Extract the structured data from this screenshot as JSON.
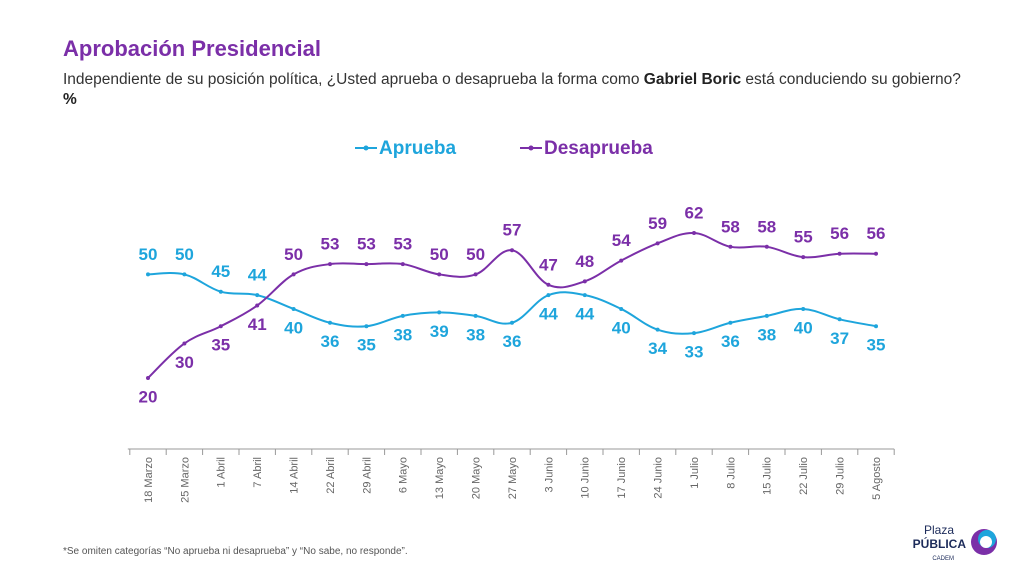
{
  "chart_data": {
    "type": "line",
    "title": "Aprobación Presidencial",
    "subtitle_parts": [
      {
        "text": "Independiente de su posición política, ¿Usted aprueba o desaprueba la forma como"
      },
      {
        "text": "Gabriel Boric",
        "bold": true
      },
      {
        "text": "está conduciendo su gobierno?"
      },
      {
        "text": "%",
        "bold": true
      }
    ],
    "categories": [
      "18 Marzo",
      "25 Marzo",
      "1 Abril",
      "7 Abril",
      "14 Abril",
      "22 Abril",
      "29 Abril",
      "6 Mayo",
      "13 Mayo",
      "20 Mayo",
      "27 Mayo",
      "3 Junio",
      "10 Junio",
      "17 Junio",
      "24 Junio",
      "1 Julio",
      "8 Julio",
      "15 Julio",
      "22 Julio",
      "29 Julio",
      "5 Agosto"
    ],
    "series": [
      {
        "name": "Aprueba",
        "color": "#1ea5dc",
        "values": [
          50,
          50,
          45,
          44,
          40,
          36,
          35,
          38,
          39,
          38,
          36,
          44,
          44,
          40,
          34,
          33,
          36,
          38,
          40,
          37,
          35
        ]
      },
      {
        "name": "Desaprueba",
        "color": "#7b2fa8",
        "values": [
          20,
          30,
          35,
          41,
          50,
          53,
          53,
          53,
          50,
          50,
          57,
          47,
          48,
          54,
          59,
          62,
          58,
          58,
          55,
          56,
          56
        ]
      }
    ],
    "legend": "top",
    "footnote": "*Se omiten categorías “No aprueba ni desaprueba” y “No sabe, no responde”.",
    "logo": {
      "line1": "Plaza",
      "line2": "PÚBLICA",
      "line3": "CADEM"
    }
  }
}
